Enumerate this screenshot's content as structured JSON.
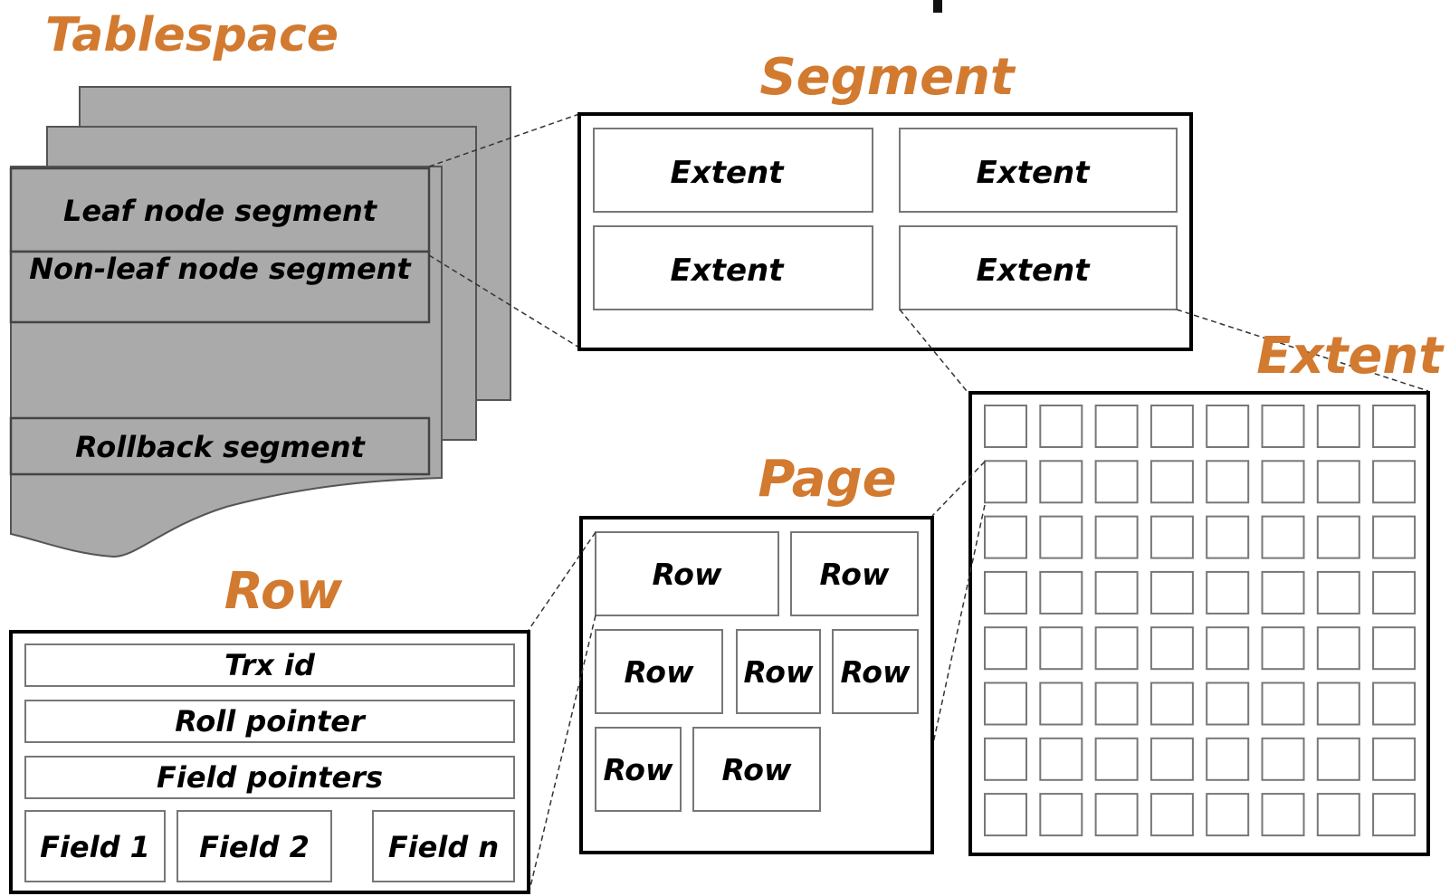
{
  "colors": {
    "title": "#d27a30",
    "sheet": "#aaaaaa",
    "border": "#000000"
  },
  "tablespace": {
    "title": "Tablespace",
    "segments": [
      "Leaf node segment",
      "Non-leaf node segment",
      "Rollback segment"
    ]
  },
  "segment": {
    "title": "Segment",
    "extents": [
      "Extent",
      "Extent",
      "Extent",
      "Extent"
    ]
  },
  "extent": {
    "title": "Extent",
    "grid_rows": 8,
    "grid_cols": 8
  },
  "page": {
    "title": "Page",
    "rows": [
      "Row",
      "Row",
      "Row",
      "Row",
      "Row",
      "Row",
      "Row"
    ]
  },
  "row": {
    "title": "Row",
    "fields": [
      "Trx id",
      "Roll pointer",
      "Field pointers"
    ],
    "columns": [
      "Field 1",
      "Field 2",
      "Field n"
    ]
  }
}
